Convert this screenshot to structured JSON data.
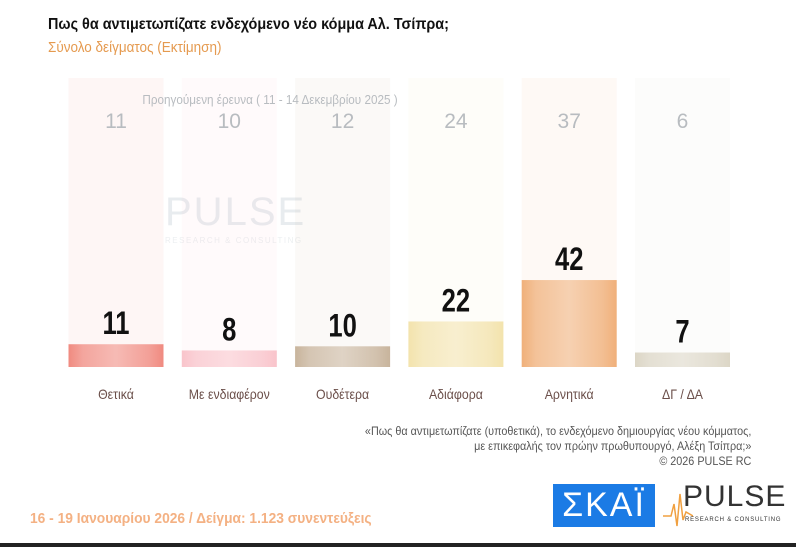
{
  "title": "Πως θα αντιμετωπίζατε ενδεχόμενο νέο κόμμα Αλ. Τσίπρα;",
  "subtitle": "Σύνολο δείγματος  (Εκτίμηση)",
  "chart_data": {
    "type": "bar",
    "categories": [
      "Θετικά",
      "Με ενδιαφέρον",
      "Ουδέτερα",
      "Αδιάφορα",
      "Αρνητικά",
      "ΔΓ / ΔΑ"
    ],
    "series": [
      {
        "name": "",
        "values": [
          11,
          8,
          10,
          22,
          42,
          7
        ]
      },
      {
        "name": "Προηγούμενη έρευνα ( 11 - 14 Δεκεμβρίου 2025 )",
        "values": [
          11,
          10,
          12,
          24,
          37,
          6
        ]
      }
    ],
    "colors": [
      "#f08a80",
      "#f9c4cb",
      "#c8b49c",
      "#f3e3ad",
      "#f0b07a",
      "#dcd6c6"
    ],
    "prev_caption": "Προηγούμενη έρευνα ( 11 - 14 Δεκεμβρίου 2025 )",
    "ylim": [
      0,
      100
    ]
  },
  "watermark": {
    "name": "PULSE",
    "tagline": "RESEARCH & CONSULTING"
  },
  "note": {
    "line1": "«Πως θα αντιμετωπίζατε (υποθετικά), το ενδεχόμενο δημιουργίας νέου κόμματος,",
    "line2": "με επικεφαλής τον πρώην πρωθυπουργό, Αλέξη Τσίπρα;»",
    "line3": "©  2026  PULSE RC"
  },
  "footer": "16 - 19 Ιανουαρίου 2026  /  Δείγμα:  1.123 συνεντεύξεις",
  "logos": {
    "skai": "ΣΚΑΪ",
    "pulse": "PULSE",
    "pulse_tagline": "RESEARCH & CONSULTING"
  }
}
